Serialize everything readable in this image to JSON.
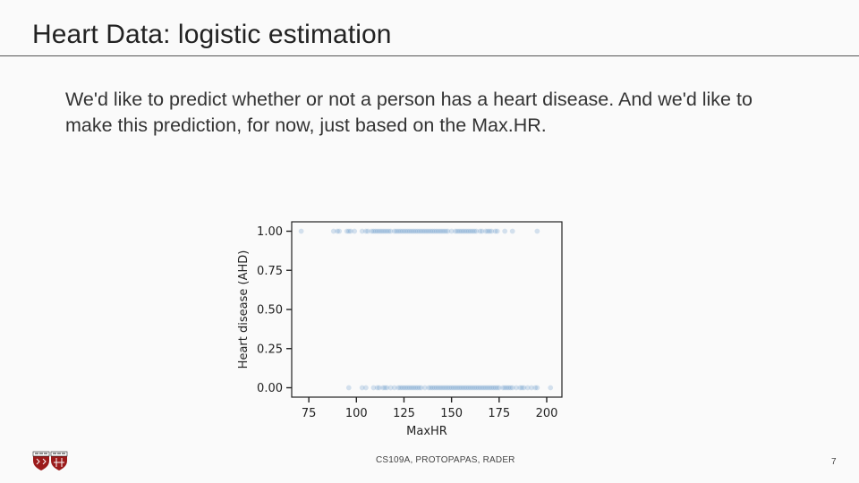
{
  "slide": {
    "title": "Heart Data: logistic estimation",
    "body": "We'd like to predict whether or not a person has a heart disease. And we'd like to make this prediction, for now, just based on the Max.HR."
  },
  "footer": {
    "course": "CS109A, PROTOPAPAS, RADER",
    "page_number": "7"
  },
  "chart_data": {
    "type": "scatter",
    "title": "",
    "xlabel": "MaxHR",
    "ylabel": "Heart disease (AHD)",
    "xlim": [
      66,
      208
    ],
    "ylim": [
      -0.06,
      1.06
    ],
    "xticks": [
      75,
      100,
      125,
      150,
      175,
      200
    ],
    "yticks": [
      0.0,
      0.25,
      0.5,
      0.75,
      1.0
    ],
    "ytick_labels": [
      "0.00",
      "0.25",
      "0.50",
      "0.75",
      "1.00"
    ],
    "grid": false,
    "point_color": "#4a86c0",
    "series": [
      {
        "values_y": 1,
        "x": [
          71,
          88,
          90,
          91,
          95,
          96,
          97,
          99,
          103,
          105,
          106,
          108,
          109,
          110,
          111,
          112,
          113,
          114,
          115,
          116,
          117,
          118,
          120,
          121,
          122,
          123,
          124,
          125,
          126,
          127,
          128,
          129,
          130,
          131,
          132,
          133,
          134,
          135,
          136,
          137,
          138,
          139,
          140,
          141,
          142,
          143,
          144,
          145,
          146,
          147,
          148,
          150,
          152,
          153,
          154,
          155,
          156,
          157,
          158,
          159,
          160,
          161,
          162,
          163,
          165,
          166,
          168,
          169,
          170,
          171,
          173,
          174,
          178,
          182,
          195
        ]
      },
      {
        "values_y": 0,
        "x": [
          96,
          103,
          105,
          109,
          111,
          112,
          114,
          115,
          116,
          118,
          120,
          122,
          123,
          124,
          125,
          126,
          127,
          128,
          129,
          130,
          131,
          132,
          133,
          134,
          136,
          138,
          139,
          140,
          141,
          142,
          143,
          144,
          145,
          146,
          147,
          148,
          149,
          150,
          151,
          152,
          153,
          154,
          155,
          156,
          157,
          158,
          159,
          160,
          161,
          162,
          163,
          164,
          165,
          166,
          167,
          168,
          169,
          170,
          171,
          172,
          173,
          174,
          175,
          177,
          178,
          179,
          180,
          181,
          182,
          184,
          186,
          187,
          188,
          190,
          192,
          194,
          195,
          202
        ]
      }
    ]
  }
}
